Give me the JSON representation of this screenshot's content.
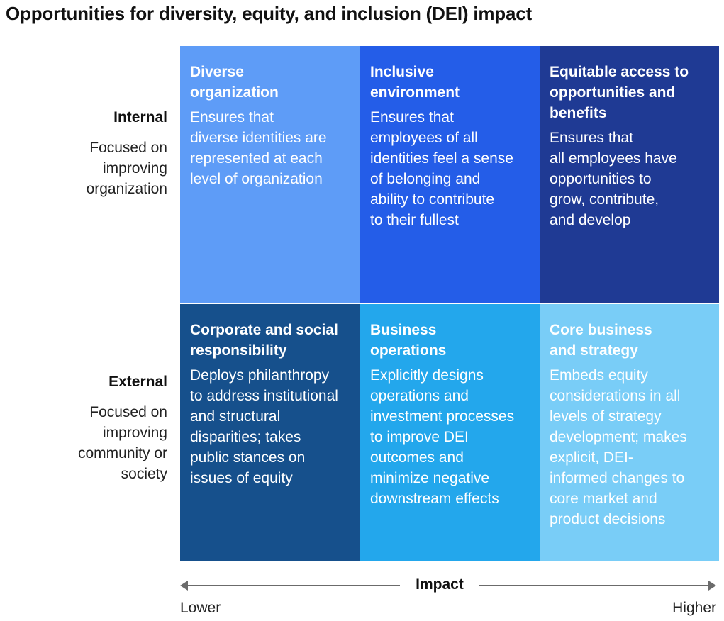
{
  "title": "Opportunities for diversity, equity, and inclusion (DEI) impact",
  "rows": [
    {
      "label": "Internal",
      "sub": [
        "Focused on",
        "improving",
        "organization"
      ]
    },
    {
      "label": "External",
      "sub": [
        "Focused on",
        "improving",
        "community or",
        "society"
      ]
    }
  ],
  "cells": [
    {
      "title": [
        "Diverse",
        "organization"
      ],
      "desc": [
        "Ensures that",
        "diverse identities are",
        "represented at each",
        "level of organization"
      ],
      "color": "#5e9cf7"
    },
    {
      "title": [
        "Inclusive",
        "environment"
      ],
      "desc": [
        "Ensures that",
        "employees of all",
        "identities feel a sense",
        "of belonging and",
        "ability to contribute",
        "to their fullest"
      ],
      "color": "#245de8"
    },
    {
      "title": [
        "Equitable access to",
        "opportunities and",
        "benefits"
      ],
      "desc": [
        "Ensures that",
        "all employees have",
        "opportunities to",
        "grow, contribute,",
        "and develop"
      ],
      "color": "#1f3a94"
    },
    {
      "title": [
        "Corporate and social",
        "responsibility"
      ],
      "desc": [
        "Deploys philanthropy",
        "to address institutional",
        "and structural",
        "disparities; takes",
        "public stances on",
        "issues of equity"
      ],
      "color": "#16508c"
    },
    {
      "title": [
        "Business",
        "operations"
      ],
      "desc": [
        "Explicitly designs",
        "operations and",
        "investment processes",
        "to improve DEI",
        "outcomes and",
        "minimize negative",
        "downstream effects"
      ],
      "color": "#23a7ec"
    },
    {
      "title": [
        "Core business",
        "and strategy"
      ],
      "desc": [
        "Embeds equity",
        "considerations in all",
        "levels of strategy",
        "development; makes",
        "explicit, DEI-",
        "informed changes to",
        "core market and",
        "product decisions"
      ],
      "color": "#79cdf7"
    }
  ],
  "axis": {
    "label": "Impact",
    "low": "Lower",
    "high": "Higher"
  },
  "colors": {
    "dark_text": "#111111",
    "light_text": "#ffffff"
  }
}
